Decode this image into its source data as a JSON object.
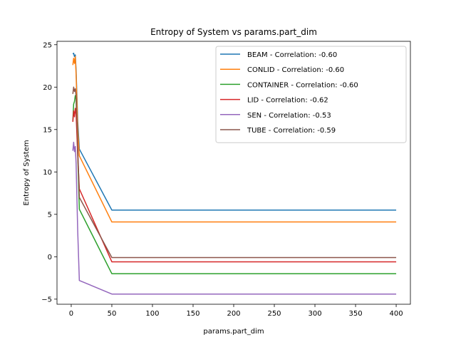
{
  "chart_data": {
    "type": "line",
    "title": "Entropy of System vs params.part_dim",
    "xlabel": "params.part_dim",
    "ylabel": "Entropy of System",
    "xlim": [
      -17.5,
      417.5
    ],
    "ylim": [
      -5.6,
      25.4
    ],
    "xticks": [
      0,
      50,
      100,
      150,
      200,
      250,
      300,
      350,
      400
    ],
    "yticks": [
      -5,
      0,
      5,
      10,
      15,
      20,
      25
    ],
    "legend_position": "upper right",
    "grid": false,
    "series": [
      {
        "name": "BEAM - Correlation: -0.60",
        "color": "#1f77b4",
        "x": [
          2,
          3,
          4,
          5,
          6,
          8,
          10,
          50,
          400
        ],
        "y": [
          23.9,
          24.0,
          23.6,
          23.8,
          22.0,
          16.0,
          12.7,
          5.5,
          5.5
        ]
      },
      {
        "name": "CONLID - Correlation: -0.60",
        "color": "#ff7f0e",
        "x": [
          2,
          3,
          4,
          5,
          6,
          8,
          10,
          50,
          400
        ],
        "y": [
          22.6,
          23.4,
          22.8,
          23.6,
          21.5,
          15.0,
          11.9,
          4.1,
          4.1
        ]
      },
      {
        "name": "CONTAINER - Correlation: -0.60",
        "color": "#2ca02c",
        "x": [
          2,
          3,
          4,
          5,
          6,
          8,
          10,
          50,
          400
        ],
        "y": [
          16.0,
          18.0,
          18.3,
          19.0,
          18.6,
          12.0,
          5.6,
          -2.0,
          -2.0
        ]
      },
      {
        "name": "LID - Correlation: -0.62",
        "color": "#d62728",
        "x": [
          2,
          3,
          4,
          5,
          6,
          8,
          10,
          50,
          400
        ],
        "y": [
          15.9,
          17.2,
          16.5,
          17.5,
          16.8,
          12.0,
          8.0,
          -0.6,
          -0.6
        ]
      },
      {
        "name": "SEN - Correlation: -0.53",
        "color": "#9467bd",
        "x": [
          2,
          3,
          4,
          5,
          6,
          8,
          10,
          50,
          400
        ],
        "y": [
          12.5,
          13.5,
          12.4,
          13.0,
          11.0,
          3.0,
          -2.8,
          -4.4,
          -4.4
        ]
      },
      {
        "name": "TUBE - Correlation: -0.59",
        "color": "#8c564b",
        "x": [
          2,
          3,
          4,
          5,
          6,
          8,
          10,
          50,
          400
        ],
        "y": [
          19.2,
          20.0,
          19.5,
          19.8,
          19.0,
          13.0,
          7.0,
          -0.1,
          -0.1
        ]
      }
    ]
  }
}
